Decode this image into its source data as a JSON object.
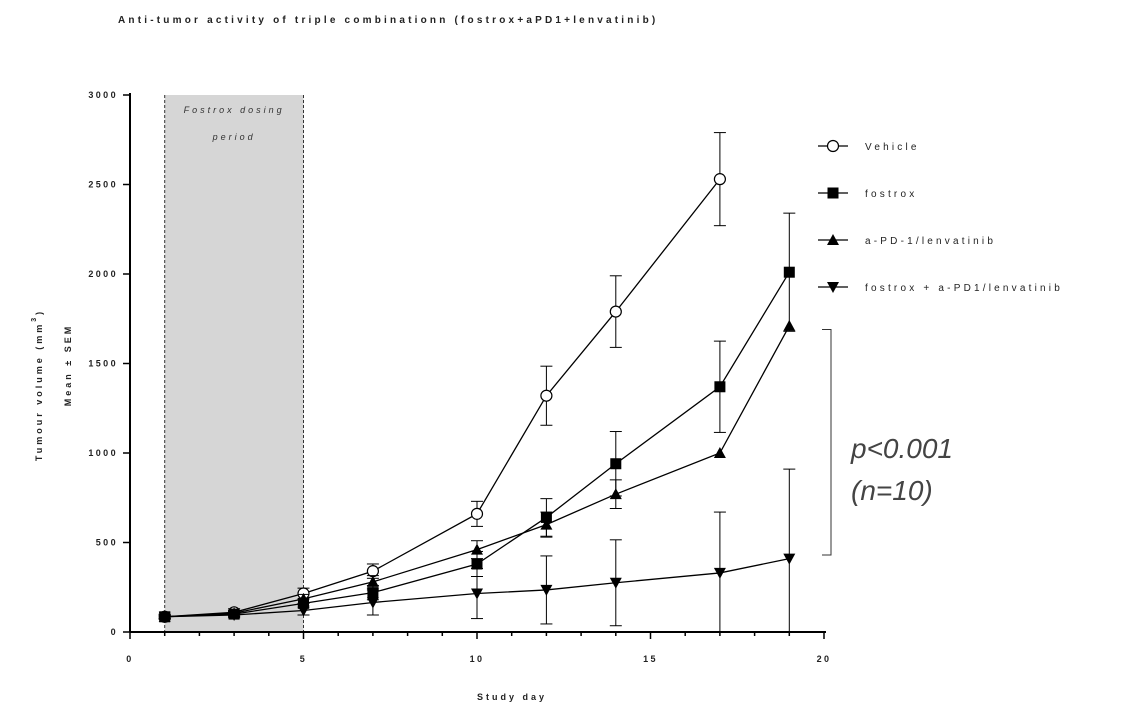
{
  "chart_data": {
    "type": "line",
    "title": "Anti-tumor activity of triple combinationn (fostrox+aPD1+lenvatinib)",
    "xlabel": "Study day",
    "ylabel_line1": "Tumour volume (mm",
    "ylabel_sup": "3",
    "ylabel_line1_close": ")",
    "ylabel_line2": "Mean ± SEM",
    "xlim": [
      0,
      20
    ],
    "ylim": [
      0,
      3000
    ],
    "xticks": [
      0,
      5,
      10,
      15,
      20
    ],
    "yticks": [
      0,
      500,
      1000,
      1500,
      2000,
      2500,
      3000
    ],
    "x": [
      1,
      3,
      5,
      7,
      10,
      12,
      14,
      17,
      19
    ],
    "series": [
      {
        "name": "Vehicle",
        "marker": "circle-open",
        "x": [
          1,
          3,
          5,
          7,
          10,
          12,
          14,
          17
        ],
        "values": [
          85,
          110,
          215,
          340,
          660,
          1320,
          1790,
          2530
        ],
        "errors": [
          15,
          20,
          30,
          40,
          70,
          165,
          200,
          260
        ]
      },
      {
        "name": "fostrox",
        "marker": "square",
        "x": [
          1,
          3,
          5,
          7,
          10,
          12,
          14,
          17,
          19
        ],
        "values": [
          85,
          100,
          160,
          220,
          380,
          640,
          940,
          1370,
          2010
        ],
        "errors": [
          10,
          15,
          25,
          40,
          70,
          105,
          180,
          255,
          330
        ]
      },
      {
        "name": "a-PD-1/lenvatinib",
        "marker": "triangle-up",
        "x": [
          1,
          3,
          5,
          7,
          10,
          12,
          14,
          17,
          19
        ],
        "values": [
          85,
          105,
          185,
          280,
          460,
          600,
          770,
          1000,
          1710
        ],
        "errors": [
          10,
          15,
          25,
          35,
          50,
          70,
          80,
          0,
          0
        ]
      },
      {
        "name": "fostrox + a-PD1/lenvatinib",
        "marker": "triangle-down",
        "x": [
          1,
          3,
          5,
          7,
          10,
          12,
          14,
          17,
          19
        ],
        "values": [
          85,
          95,
          120,
          165,
          215,
          235,
          275,
          330,
          410
        ],
        "errors": [
          10,
          15,
          25,
          70,
          140,
          190,
          240,
          340,
          500
        ]
      }
    ],
    "shaded_region": {
      "x": [
        1,
        5
      ],
      "label_line1": "Fostrox dosing",
      "label_line2": "period"
    },
    "annotation": {
      "line1": "p<0.001",
      "line2": "(n=10)",
      "y_range": [
        430,
        1690
      ]
    },
    "legend_position": "right",
    "grid": false
  }
}
